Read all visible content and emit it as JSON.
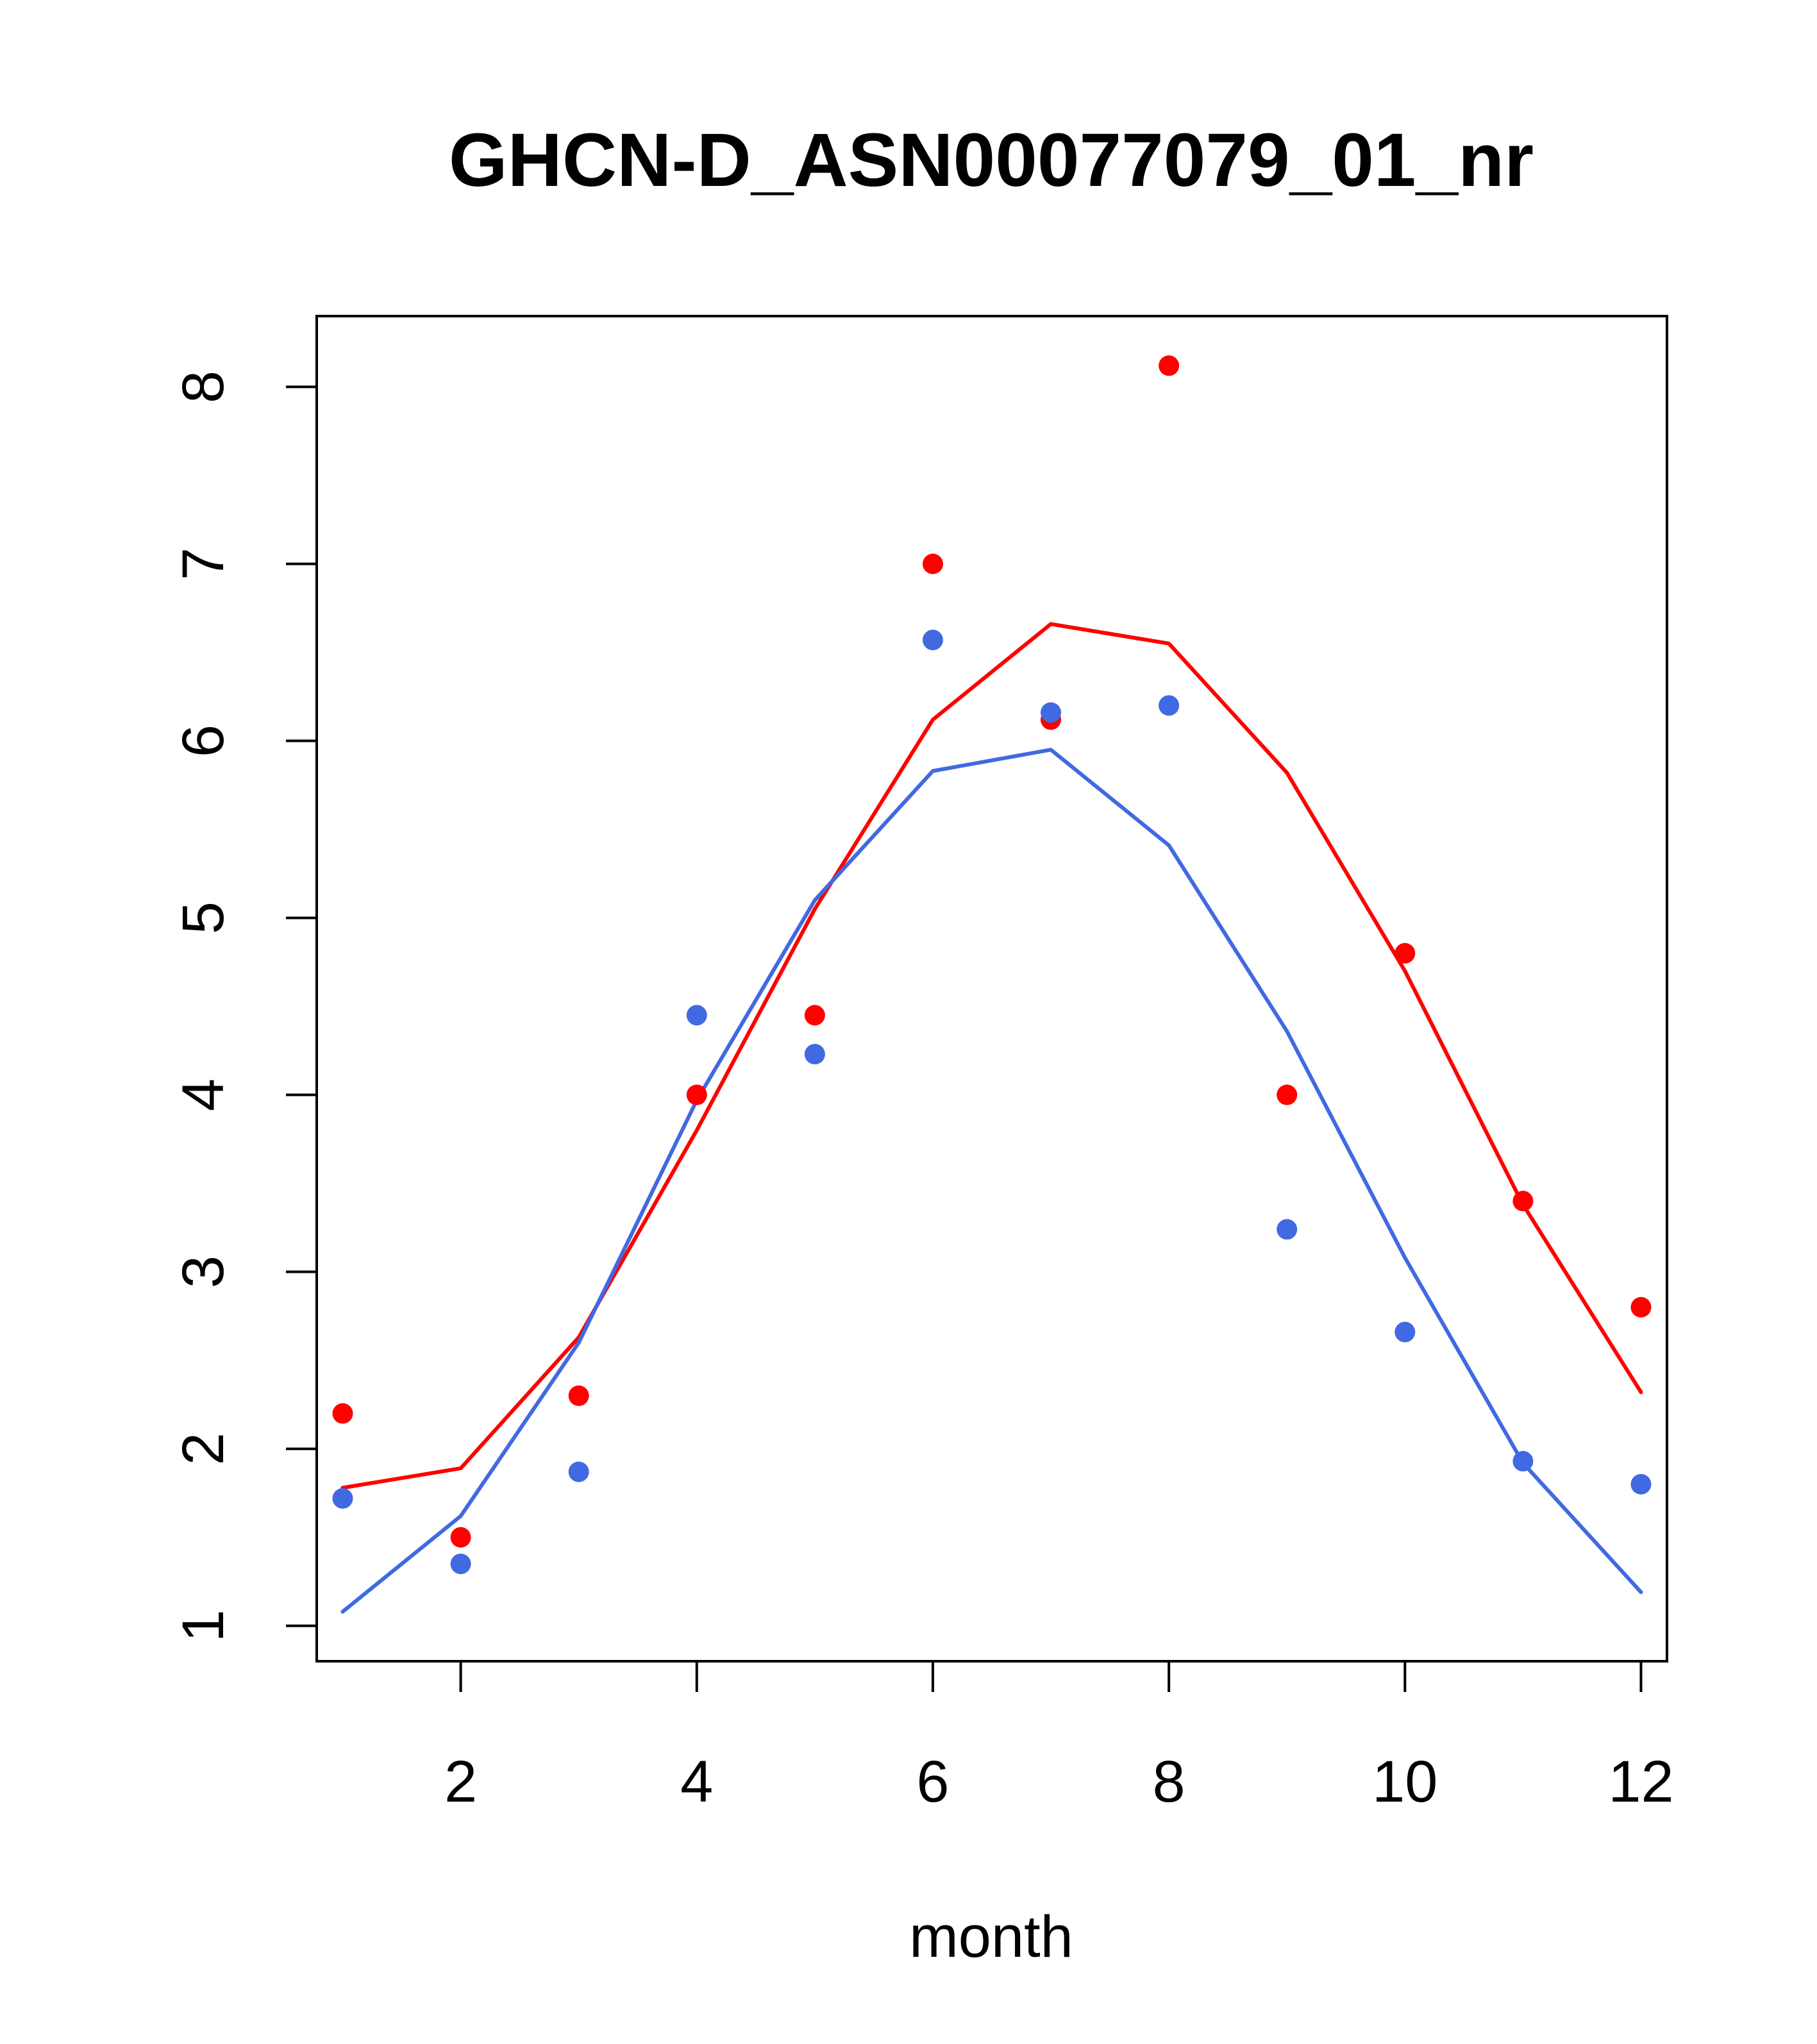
{
  "chart_data": {
    "type": "line",
    "title": "GHCN-D_ASN00077079_01_nr",
    "xlabel": "month",
    "ylabel": "",
    "xlim": [
      0.78,
      12.22
    ],
    "ylim": [
      0.8,
      8.4
    ],
    "xticks": [
      2,
      4,
      6,
      8,
      10,
      12
    ],
    "yticks": [
      1,
      2,
      3,
      4,
      5,
      6,
      7,
      8
    ],
    "grid": false,
    "x": [
      1,
      2,
      3,
      4,
      5,
      6,
      7,
      8,
      9,
      10,
      11,
      12
    ],
    "series": [
      {
        "color": "#ff0000",
        "points": [
          2.2,
          1.5,
          2.3,
          4.0,
          4.45,
          7.0,
          6.12,
          8.12,
          4.0,
          4.8,
          3.4,
          2.8
        ],
        "line": [
          1.78,
          1.89,
          2.63,
          3.8,
          5.05,
          6.12,
          6.66,
          6.55,
          5.82,
          4.7,
          3.38,
          2.32
        ]
      },
      {
        "color": "#4169e1",
        "points": [
          1.72,
          1.35,
          1.87,
          4.45,
          4.23,
          6.57,
          6.16,
          6.2,
          3.24,
          2.66,
          1.93,
          1.8
        ],
        "line": [
          1.08,
          1.62,
          2.6,
          3.97,
          5.1,
          5.83,
          5.95,
          5.41,
          4.36,
          3.08,
          1.92,
          1.19
        ]
      }
    ]
  }
}
